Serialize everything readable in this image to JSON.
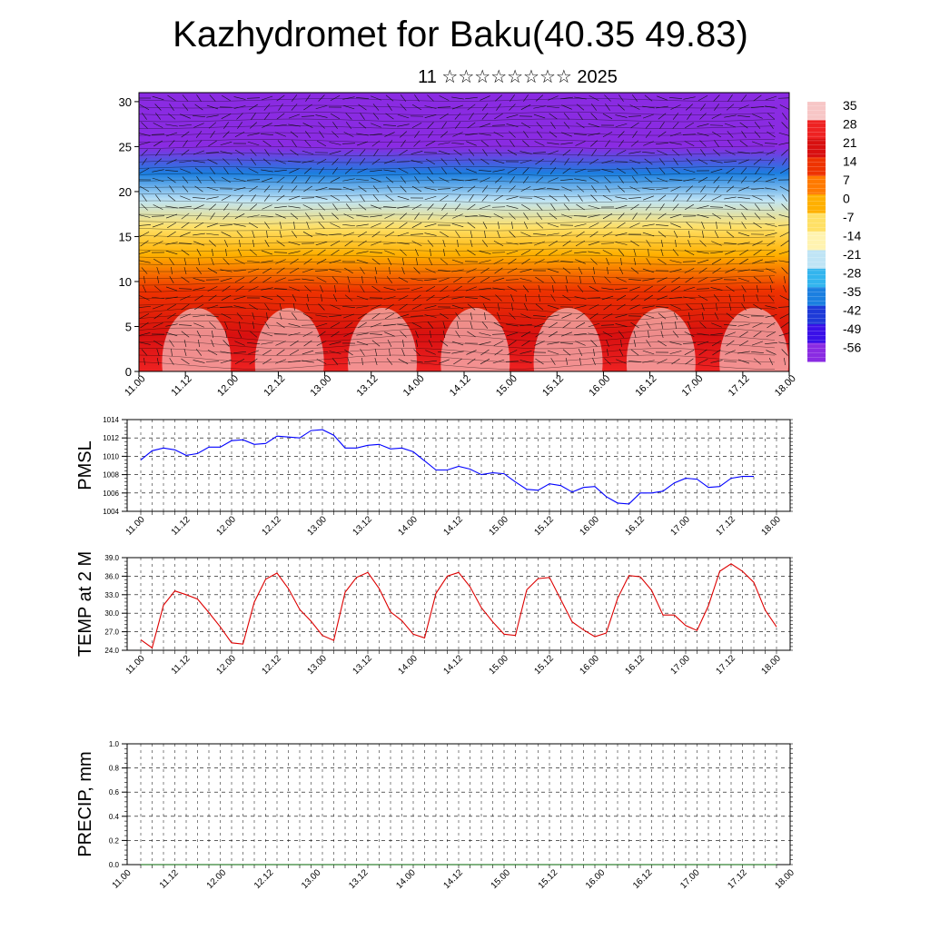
{
  "title": "Kazhydromet for Baku(40.35 49.83)",
  "subtitle": "11 ☆☆☆☆☆☆☆☆ 2025",
  "time_labels": [
    "11.00",
    "11.12",
    "12.00",
    "12.12",
    "13.00",
    "13.12",
    "14.00",
    "14.12",
    "15.00",
    "15.12",
    "16.00",
    "16.12",
    "17.00",
    "17.12",
    "18.00"
  ],
  "chart_data": [
    {
      "type": "heatmap",
      "name": "temperature-height-section",
      "xlabel": "",
      "ylabel": "",
      "ylim": [
        0,
        31
      ],
      "yticks": [
        "0",
        "5",
        "10",
        "15",
        "20",
        "25",
        "30"
      ],
      "colorbar_labels": [
        "35",
        "28",
        "21",
        "14",
        "7",
        "0",
        "-7",
        "-14",
        "-21",
        "-28",
        "-35",
        "-42",
        "-49",
        "-56"
      ],
      "colorbar_colors": [
        "#f7c6c6",
        "#ee2222",
        "#d81010",
        "#ee3300",
        "#ff7a00",
        "#ffb000",
        "#ffe066",
        "#fff3b0",
        "#bfe4f5",
        "#33b5ee",
        "#1b7fe0",
        "#1e3ad8",
        "#3a10e8",
        "#8a2be2"
      ],
      "profile": [
        {
          "level": 0,
          "value": 28
        },
        {
          "level": 4,
          "value": 22
        },
        {
          "level": 9,
          "value": 14
        },
        {
          "level": 13,
          "value": 2
        },
        {
          "level": 16,
          "value": -8
        },
        {
          "level": 19,
          "value": -20
        },
        {
          "level": 22,
          "value": -38
        },
        {
          "level": 25,
          "value": -56
        },
        {
          "level": 31,
          "value": -60
        }
      ]
    },
    {
      "type": "line",
      "name": "PMSL",
      "ylabel": "PMSL",
      "ylim": [
        1004,
        1014
      ],
      "yticks": [
        "1004",
        "1006",
        "1008",
        "1010",
        "1012",
        "1014"
      ],
      "color": "#0000ff",
      "x_start": 11.0,
      "x_step_days": 0.125,
      "values": [
        1009.6,
        1010.6,
        1010.9,
        1010.7,
        1010.1,
        1010.3,
        1011.0,
        1011.0,
        1011.7,
        1011.8,
        1011.3,
        1011.4,
        1012.2,
        1012.1,
        1012.0,
        1012.8,
        1012.9,
        1012.3,
        1010.9,
        1010.9,
        1011.2,
        1011.3,
        1010.8,
        1010.9,
        1010.5,
        1009.5,
        1008.5,
        1008.5,
        1008.9,
        1008.6,
        1008.0,
        1008.2,
        1008.1,
        1007.2,
        1006.4,
        1006.3,
        1007.0,
        1006.8,
        1006.1,
        1006.6,
        1006.7,
        1005.6,
        1004.9,
        1004.8,
        1006.0,
        1006.0,
        1006.2,
        1007.1,
        1007.6,
        1007.5,
        1006.6,
        1006.7,
        1007.6,
        1007.8,
        1007.8
      ]
    },
    {
      "type": "line",
      "name": "TEMP at 2 M",
      "ylabel": "TEMP at 2 M",
      "ylim": [
        24.0,
        39.0
      ],
      "yticks": [
        "24.0",
        "27.0",
        "30.0",
        "33.0",
        "36.0",
        "39.0"
      ],
      "color": "#dd0000",
      "x_start": 11.0,
      "x_step_days": 0.125,
      "values": [
        25.7,
        24.4,
        31.3,
        33.6,
        33.0,
        32.3,
        30.1,
        27.8,
        25.2,
        25.0,
        31.8,
        35.5,
        36.5,
        34.0,
        30.6,
        28.7,
        26.4,
        25.6,
        33.4,
        35.8,
        36.6,
        34.0,
        30.2,
        28.8,
        26.6,
        26.0,
        33.2,
        36.0,
        36.6,
        34.3,
        30.9,
        28.6,
        26.6,
        26.4,
        33.8,
        35.6,
        35.8,
        32.2,
        28.6,
        27.3,
        26.2,
        26.8,
        32.4,
        36.1,
        35.9,
        33.7,
        29.7,
        29.7,
        28.0,
        27.2,
        31.2,
        36.8,
        38.0,
        36.8,
        35.0,
        30.5,
        27.8
      ]
    },
    {
      "type": "line",
      "name": "PRECIP, mm",
      "ylabel": "PRECIP, mm",
      "ylim": [
        0.0,
        1.0
      ],
      "yticks": [
        "0.0",
        "0.2",
        "0.4",
        "0.6",
        "0.8",
        "1.0"
      ],
      "color": "#006400",
      "x_start": 11.0,
      "x_step_days": 0.125,
      "values": [
        0,
        0,
        0,
        0,
        0,
        0,
        0,
        0,
        0,
        0,
        0,
        0,
        0,
        0,
        0,
        0,
        0,
        0,
        0,
        0,
        0,
        0,
        0,
        0,
        0,
        0,
        0,
        0,
        0,
        0,
        0,
        0,
        0,
        0,
        0,
        0,
        0,
        0,
        0,
        0,
        0,
        0,
        0,
        0,
        0,
        0,
        0,
        0,
        0,
        0,
        0,
        0,
        0,
        0,
        0,
        0,
        0
      ]
    }
  ]
}
